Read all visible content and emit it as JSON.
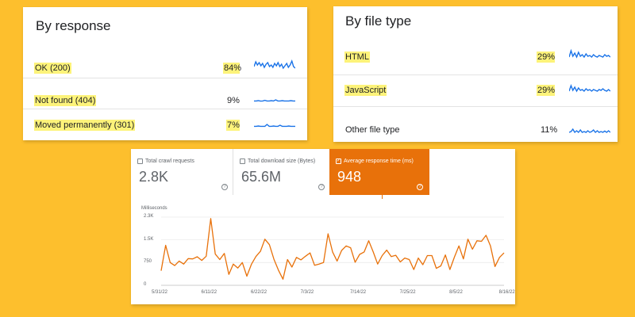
{
  "by_response": {
    "title": "By response",
    "rows": [
      {
        "label": "OK (200)",
        "percent": "84%"
      },
      {
        "label": "Not found (404)",
        "percent": "9%"
      },
      {
        "label": "Moved permanently (301)",
        "percent": "7%"
      }
    ]
  },
  "by_file_type": {
    "title": "By file type",
    "rows": [
      {
        "label": "HTML",
        "percent": "29%"
      },
      {
        "label": "JavaScript",
        "percent": "29%"
      },
      {
        "label": "Other file type",
        "percent": "11%"
      }
    ]
  },
  "crawl_stats": {
    "tiles": [
      {
        "label": "Total crawl requests",
        "value": "2.8K",
        "checked": false
      },
      {
        "label": "Total download size (Bytes)",
        "value": "65.6M",
        "checked": false
      },
      {
        "label": "Average response time (ms)",
        "value": "948",
        "checked": true
      }
    ],
    "help_glyph": "?",
    "check_glyph": "✓",
    "accent_color": "#e8710a"
  },
  "chart_data": {
    "type": "line",
    "title": "",
    "xlabel": "",
    "ylabel": "Milliseconds",
    "y_tick_labels": [
      "2.3K",
      "1.5K",
      "750",
      "0"
    ],
    "y_ticks": [
      2250,
      1500,
      750,
      0
    ],
    "ylim": [
      0,
      2300
    ],
    "x_tick_labels": [
      "5/31/22",
      "6/11/22",
      "6/22/22",
      "7/3/22",
      "7/14/22",
      "7/25/22",
      "8/5/22",
      "8/16/22"
    ],
    "grid": true,
    "series": [
      {
        "color": "#e8710a",
        "values": [
          480,
          1320,
          750,
          650,
          800,
          700,
          880,
          870,
          940,
          820,
          960,
          2200,
          1030,
          850,
          1050,
          360,
          700,
          570,
          750,
          300,
          690,
          950,
          1120,
          1520,
          1340,
          860,
          500,
          200,
          850,
          600,
          920,
          840,
          960,
          1070,
          660,
          700,
          750,
          1700,
          1100,
          800,
          1150,
          1300,
          1240,
          760,
          1020,
          1100,
          1470,
          1100,
          700,
          980,
          1160,
          950,
          990,
          770,
          900,
          850,
          520,
          900,
          680,
          980,
          980,
          560,
          640,
          1000,
          520,
          930,
          1300,
          870,
          1520,
          1190,
          1470,
          1450,
          1650,
          1300,
          620,
          920,
          1070
        ]
      }
    ]
  },
  "sparklines": {
    "color": "#1a73e8",
    "response": [
      [
        0.55,
        0.25,
        0.45,
        0.3,
        0.5,
        0.35,
        0.6,
        0.4,
        0.3,
        0.55,
        0.45,
        0.6,
        0.35,
        0.5,
        0.3,
        0.55,
        0.4,
        0.65,
        0.5,
        0.35,
        0.6,
        0.45,
        0.2,
        0.55,
        0.65
      ],
      [
        0.72,
        0.72,
        0.7,
        0.73,
        0.72,
        0.68,
        0.72,
        0.72,
        0.7,
        0.72,
        0.65,
        0.72,
        0.72,
        0.7,
        0.72,
        0.72,
        0.72,
        0.7,
        0.72,
        0.72
      ],
      [
        0.72,
        0.72,
        0.7,
        0.72,
        0.72,
        0.72,
        0.6,
        0.72,
        0.72,
        0.7,
        0.72,
        0.72,
        0.65,
        0.72,
        0.72,
        0.72,
        0.7,
        0.72,
        0.72,
        0.72
      ]
    ],
    "file_type": [
      [
        0.6,
        0.2,
        0.55,
        0.35,
        0.6,
        0.3,
        0.55,
        0.45,
        0.6,
        0.4,
        0.55,
        0.5,
        0.6,
        0.45,
        0.55,
        0.6,
        0.5,
        0.55,
        0.6,
        0.45,
        0.55,
        0.5,
        0.6
      ],
      [
        0.6,
        0.25,
        0.55,
        0.35,
        0.6,
        0.4,
        0.55,
        0.5,
        0.6,
        0.45,
        0.55,
        0.5,
        0.6,
        0.5,
        0.55,
        0.6,
        0.5,
        0.55,
        0.45,
        0.55,
        0.6,
        0.5,
        0.6
      ],
      [
        0.7,
        0.65,
        0.5,
        0.7,
        0.6,
        0.7,
        0.55,
        0.7,
        0.65,
        0.7,
        0.6,
        0.7,
        0.65,
        0.55,
        0.7,
        0.6,
        0.7,
        0.65,
        0.7,
        0.62,
        0.7,
        0.6,
        0.7
      ]
    ]
  }
}
